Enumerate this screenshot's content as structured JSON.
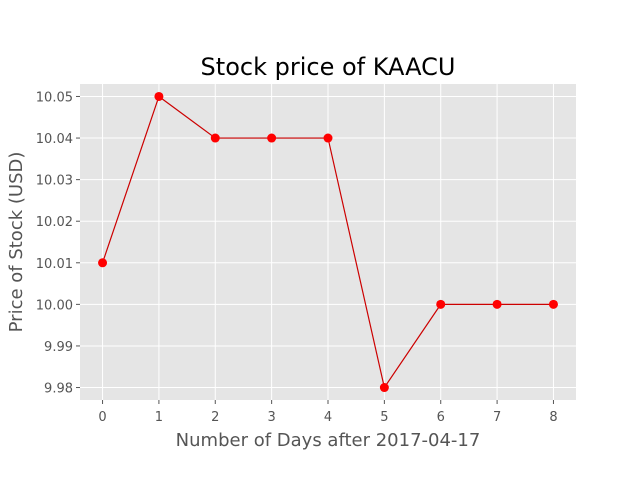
{
  "chart_data": {
    "type": "line",
    "title": "Stock price of KAACU",
    "xlabel": "Number of Days after 2017-04-17",
    "ylabel": "Price of Stock (USD)",
    "x": [
      0,
      1,
      2,
      3,
      4,
      5,
      6,
      7,
      8
    ],
    "xticks": [
      "0",
      "1",
      "2",
      "3",
      "4",
      "5",
      "6",
      "7",
      "8"
    ],
    "yticks": [
      "9.98",
      "9.99",
      "10.00",
      "10.01",
      "10.02",
      "10.03",
      "10.04",
      "10.05"
    ],
    "ytick_values": [
      9.98,
      9.99,
      10.0,
      10.01,
      10.02,
      10.03,
      10.04,
      10.05
    ],
    "series": [
      {
        "values": [
          10.01,
          10.05,
          10.04,
          10.04,
          10.04,
          9.98,
          10.0,
          10.0,
          10.0
        ],
        "color": "#ff0000",
        "line_color": "#cc0000",
        "marker": "circle"
      }
    ],
    "xlim": [
      -0.4,
      8.4
    ],
    "ylim": [
      9.977,
      10.053
    ],
    "grid": true,
    "plot_background": "#e5e5e5"
  }
}
